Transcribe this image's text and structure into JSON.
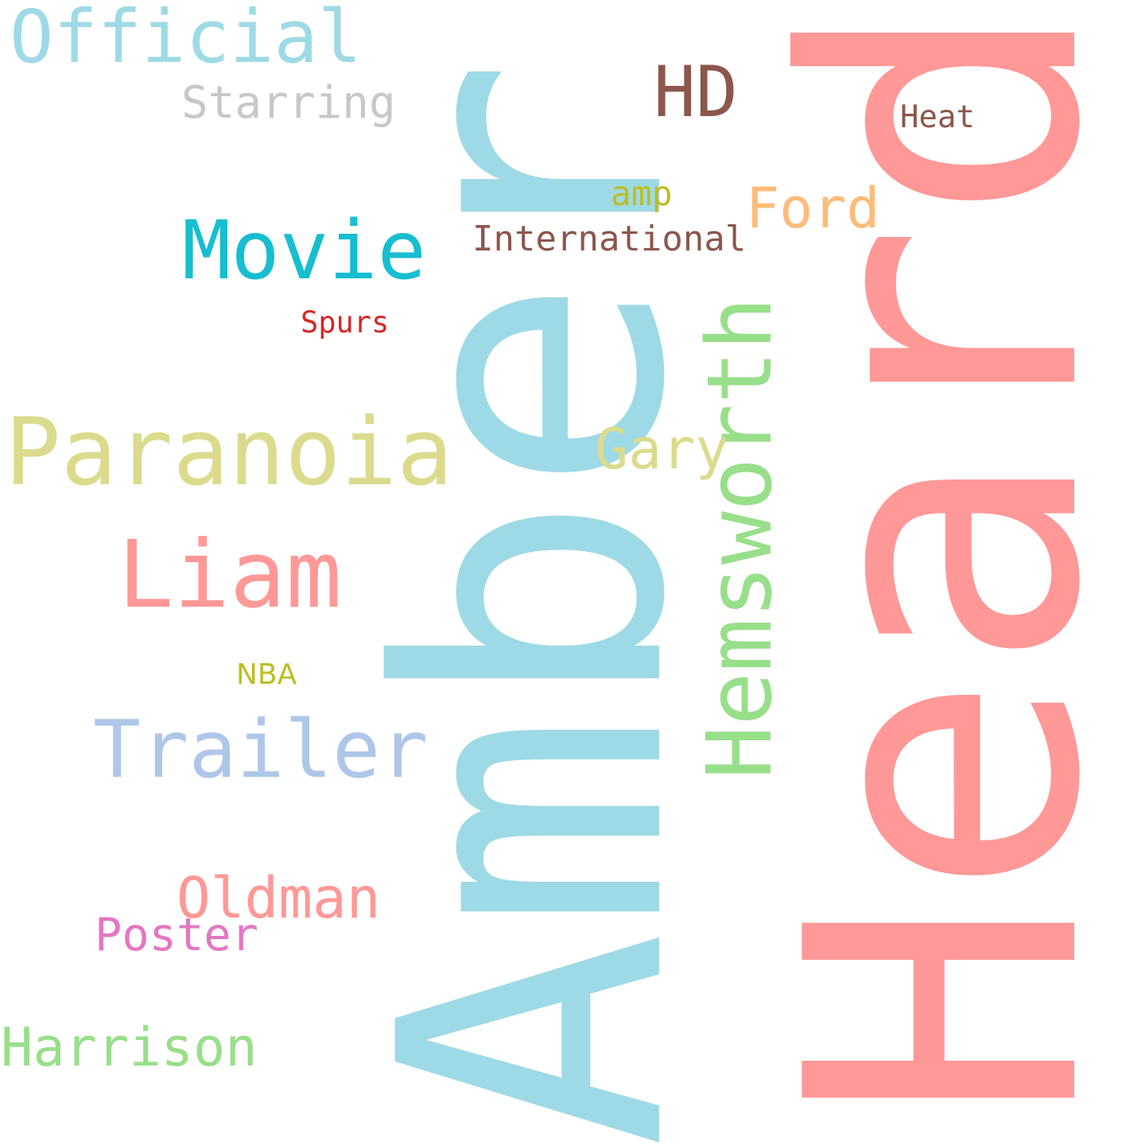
{
  "words": [
    {
      "key": "heard",
      "text": "Heard",
      "color": "#ff9896",
      "orientation": "vertical"
    },
    {
      "key": "amber",
      "text": "Amber",
      "color": "#9edae5",
      "orientation": "vertical"
    },
    {
      "key": "paranoia",
      "text": "Paranoia",
      "color": "#dbdb8d",
      "orientation": "horizontal"
    },
    {
      "key": "hemsworth",
      "text": "Hemsworth",
      "color": "#98df8a",
      "orientation": "vertical"
    },
    {
      "key": "liam",
      "text": "Liam",
      "color": "#ff9896",
      "orientation": "horizontal"
    },
    {
      "key": "official",
      "text": "Official",
      "color": "#9edae5",
      "orientation": "horizontal"
    },
    {
      "key": "movie",
      "text": "Movie",
      "color": "#17becf",
      "orientation": "horizontal"
    },
    {
      "key": "trailer",
      "text": "Trailer",
      "color": "#aec7e8",
      "orientation": "horizontal"
    },
    {
      "key": "hd",
      "text": "HD",
      "color": "#8c564b",
      "orientation": "horizontal"
    },
    {
      "key": "oldman",
      "text": "Oldman",
      "color": "#ff9896",
      "orientation": "horizontal"
    },
    {
      "key": "gary",
      "text": "Gary",
      "color": "#dbdb8d",
      "orientation": "horizontal"
    },
    {
      "key": "ford",
      "text": "Ford",
      "color": "#ffbb78",
      "orientation": "horizontal"
    },
    {
      "key": "harrison",
      "text": "Harrison",
      "color": "#98df8a",
      "orientation": "horizontal"
    },
    {
      "key": "poster",
      "text": "Poster",
      "color": "#e377c2",
      "orientation": "horizontal"
    },
    {
      "key": "starring",
      "text": "Starring",
      "color": "#c7c7c7",
      "orientation": "horizontal"
    },
    {
      "key": "international",
      "text": "International",
      "color": "#8c564b",
      "orientation": "horizontal"
    },
    {
      "key": "amp",
      "text": "amp",
      "color": "#bcbd22",
      "orientation": "horizontal"
    },
    {
      "key": "heat",
      "text": "Heat",
      "color": "#8c564b",
      "orientation": "horizontal"
    },
    {
      "key": "spurs",
      "text": "Spurs",
      "color": "#d62728",
      "orientation": "horizontal"
    },
    {
      "key": "nba",
      "text": "NBA",
      "color": "#bcbd22",
      "orientation": "horizontal"
    }
  ]
}
